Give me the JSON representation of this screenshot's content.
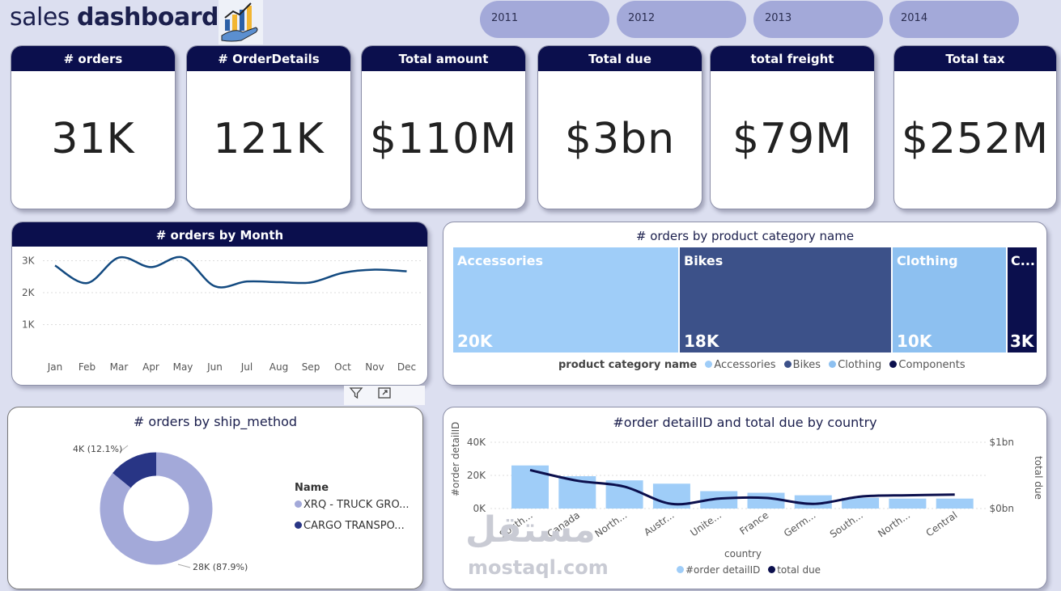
{
  "header": {
    "title_light": "sales ",
    "title_bold": "dashboard"
  },
  "years": [
    "2011",
    "2012",
    "2013",
    "2014"
  ],
  "kpis": [
    {
      "label": "# orders",
      "value": "31K"
    },
    {
      "label": "# OrderDetails",
      "value": "121K"
    },
    {
      "label": "Total amount",
      "value": "$110M"
    },
    {
      "label": "Total due",
      "value": "$3bn"
    },
    {
      "label": "total freight",
      "value": "$79M"
    },
    {
      "label": "Total tax",
      "value": "$252M"
    }
  ],
  "month_chart": {
    "title": "# orders by Month",
    "yticks": [
      "3K",
      "2K",
      "1K"
    ],
    "months": [
      "Jan",
      "Feb",
      "Mar",
      "Apr",
      "May",
      "Jun",
      "Jul",
      "Aug",
      "Sep",
      "Oct",
      "Nov",
      "Dec"
    ],
    "values": [
      2850,
      2300,
      3100,
      2800,
      3100,
      2200,
      2350,
      2330,
      2320,
      2620,
      2720,
      2670
    ],
    "ylim": [
      0,
      3500
    ]
  },
  "category_chart": {
    "title": "# orders by product category name",
    "tiles": [
      {
        "name": "Accessories",
        "value": "20K",
        "color": "#9fcdf8"
      },
      {
        "name": "Bikes",
        "value": "18K",
        "color": "#3c5189"
      },
      {
        "name": "Clothing",
        "value": "10K",
        "color": "#8dc0f0"
      },
      {
        "name": "C...",
        "value": "3K",
        "color": "#0b0f4d"
      }
    ],
    "legend_title": "product category name",
    "legend": [
      {
        "name": "Accessories",
        "color": "#9fcdf8"
      },
      {
        "name": "Bikes",
        "color": "#3c5189"
      },
      {
        "name": "Clothing",
        "color": "#8dc0f0"
      },
      {
        "name": "Components",
        "color": "#0b0f4d"
      }
    ]
  },
  "ship_chart": {
    "title": "# orders by ship_method",
    "label_small": "4K (12.1%)",
    "label_large": "28K (87.9%)",
    "legend_title": "Name",
    "legend": [
      {
        "name": "XRQ - TRUCK GRO...",
        "color": "#a3a9d9"
      },
      {
        "name": "CARGO TRANSPO...",
        "color": "#283585"
      }
    ]
  },
  "country_chart": {
    "title": "#order detailID and total due by country",
    "left_ticks": [
      "40K",
      "20K",
      "0K"
    ],
    "right_ticks": [
      "$1bn",
      "$0bn"
    ],
    "left_axis": "#order detailID",
    "right_axis": "total due",
    "x_axis": "country",
    "countries": [
      "South...",
      "Canada",
      "North...",
      "Austr...",
      "Unite...",
      "France",
      "Germ...",
      "South...",
      "North...",
      "Central"
    ],
    "bars": [
      26000,
      19500,
      17000,
      15000,
      10500,
      9500,
      8000,
      6500,
      6000,
      6000
    ],
    "line": [
      0.58,
      0.42,
      0.33,
      0.07,
      0.15,
      0.16,
      0.07,
      0.18,
      0.2,
      0.21
    ],
    "legend": [
      {
        "name": "#order detailID",
        "color": "#9fcdf8"
      },
      {
        "name": "total due",
        "color": "#0b0f4d"
      }
    ]
  },
  "watermark": {
    "arabic": "مستقل",
    "latin": "mostaql.com"
  }
}
